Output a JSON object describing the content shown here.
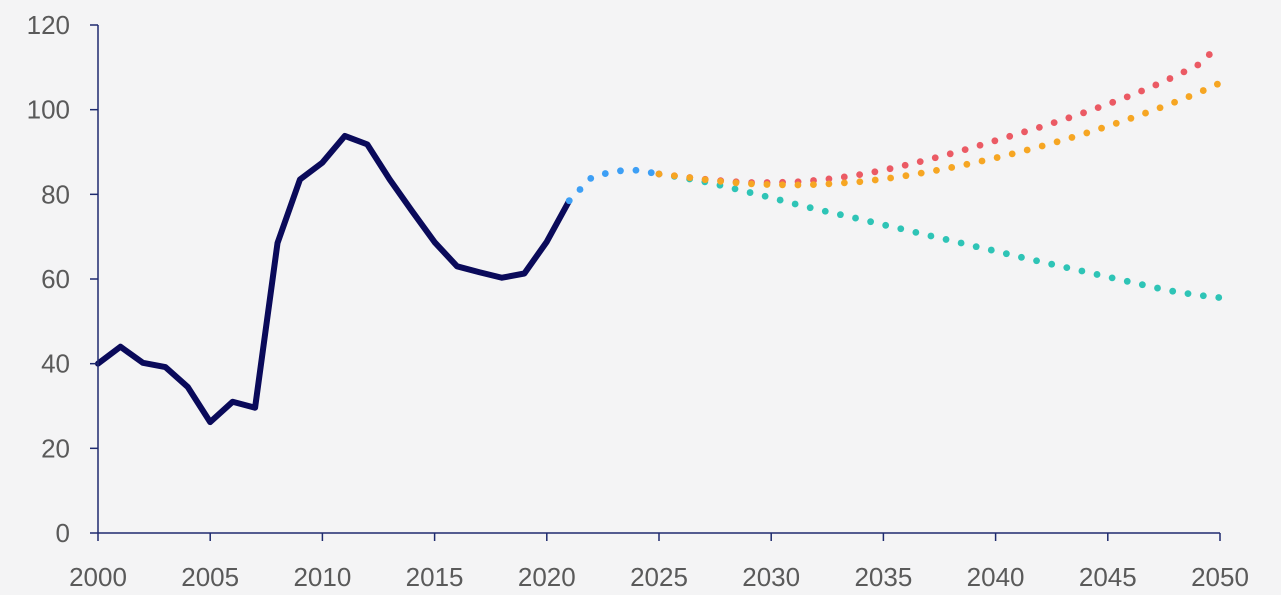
{
  "chart_data": {
    "type": "line",
    "title": "",
    "xlabel": "",
    "ylabel": "",
    "xlim": [
      2000,
      2050
    ],
    "ylim": [
      0,
      120
    ],
    "x_ticks": [
      2000,
      2005,
      2010,
      2015,
      2020,
      2025,
      2030,
      2035,
      2040,
      2045,
      2050
    ],
    "y_ticks": [
      0,
      20,
      40,
      60,
      80,
      100,
      120
    ],
    "grid": false,
    "legend": "none",
    "series": [
      {
        "style": "solid",
        "color": "#0a0a5a",
        "x": [
          2000,
          2001,
          2002,
          2003,
          2004,
          2005,
          2006,
          2007,
          2008,
          2009,
          2010,
          2011,
          2012,
          2013,
          2014,
          2015,
          2016,
          2017,
          2018,
          2019,
          2020,
          2021
        ],
        "values": [
          40,
          44,
          40.2,
          39.2,
          34.5,
          26.2,
          31,
          29.6,
          68.5,
          83.5,
          87.5,
          93.8,
          91.8,
          83.5,
          76,
          68.7,
          63,
          61.6,
          60.3,
          61.3,
          68.8,
          78.5
        ]
      },
      {
        "style": "dotted",
        "color": "#3d9ff5",
        "x": [
          2021,
          2022,
          2023,
          2024,
          2025
        ],
        "values": [
          78.5,
          84,
          85.5,
          85.7,
          84.8
        ]
      },
      {
        "style": "dotted",
        "color": "#2ec4b6",
        "x": [
          2025,
          2026,
          2027,
          2028,
          2029,
          2030,
          2031,
          2032,
          2033,
          2034,
          2035,
          2036,
          2037,
          2038,
          2039,
          2040,
          2041,
          2042,
          2043,
          2044,
          2045,
          2046,
          2047,
          2048,
          2049,
          2050
        ],
        "values": [
          84.8,
          84,
          83,
          81.8,
          80.5,
          79.2,
          77.8,
          76.5,
          75.3,
          74.1,
          72.8,
          71.6,
          70.3,
          69.1,
          67.8,
          66.6,
          65.3,
          64.1,
          62.9,
          61.7,
          60.5,
          59.3,
          58.1,
          57,
          56.2,
          55.6
        ]
      },
      {
        "style": "dotted",
        "color": "#eb5a64",
        "x": [
          2025,
          2026,
          2027,
          2028,
          2029,
          2030,
          2031,
          2032,
          2033,
          2034,
          2035,
          2036,
          2037,
          2038,
          2039,
          2040,
          2041,
          2042,
          2043,
          2044,
          2045,
          2046,
          2047,
          2048,
          2049,
          2050
        ],
        "values": [
          84.8,
          84.2,
          83.6,
          83.1,
          82.8,
          82.8,
          82.9,
          83.3,
          83.9,
          84.7,
          85.7,
          86.9,
          88.2,
          89.6,
          91.1,
          92.7,
          94.3,
          95.9,
          97.6,
          99.4,
          101.3,
          103.3,
          105.5,
          107.9,
          110.5,
          115.3
        ]
      },
      {
        "style": "dotted",
        "color": "#f6a623",
        "x": [
          2025,
          2026,
          2027,
          2028,
          2029,
          2030,
          2031,
          2032,
          2033,
          2034,
          2035,
          2036,
          2037,
          2038,
          2039,
          2040,
          2041,
          2042,
          2043,
          2044,
          2045,
          2046,
          2047,
          2048,
          2049,
          2050
        ],
        "values": [
          84.8,
          84.2,
          83.5,
          82.9,
          82.5,
          82.3,
          82.2,
          82.3,
          82.6,
          83,
          83.6,
          84.4,
          85.3,
          86.3,
          87.4,
          88.6,
          89.9,
          91.3,
          92.8,
          94.4,
          96.1,
          97.9,
          99.8,
          101.8,
          103.9,
          106.3
        ]
      }
    ]
  }
}
